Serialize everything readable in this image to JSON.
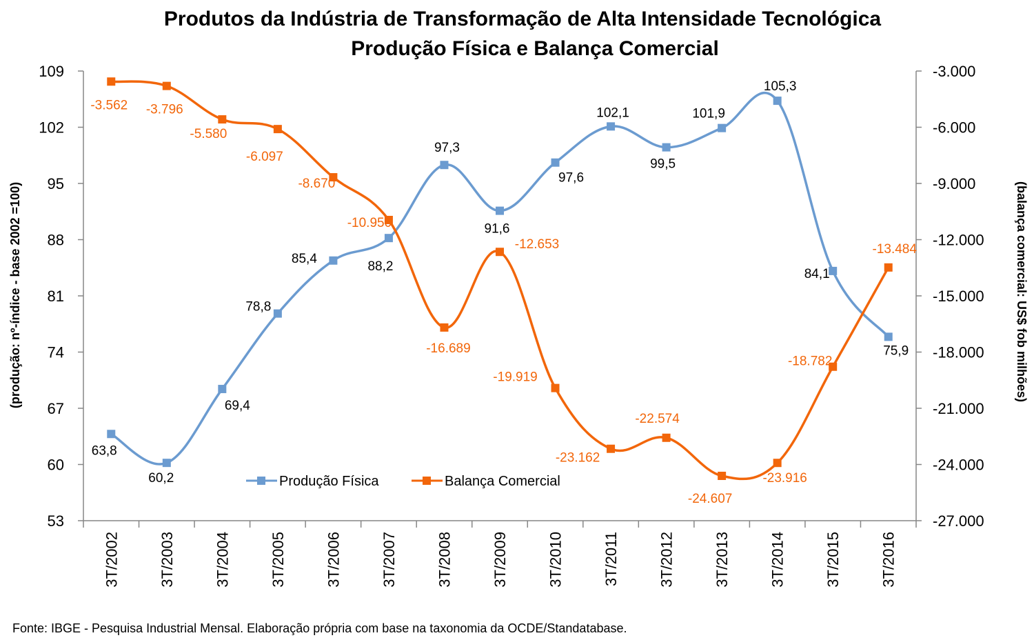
{
  "chart_data": {
    "type": "line",
    "title_line1": "Produtos da Indústria de Transformação de Alta Intensidade Tecnológica",
    "title_line2": "Produção Física e Balança Comercial",
    "ylabel_left": "(produção: nº-índice - base 2002 =100)",
    "ylabel_right": "(balança comercial: US$ fob milhões)",
    "categories": [
      "3T/2002",
      "3T/2003",
      "3T/2004",
      "3T/2005",
      "3T/2006",
      "3T/2007",
      "3T/2008",
      "3T/2009",
      "3T/2010",
      "3T/2011",
      "3T/2012",
      "3T/2013",
      "3T/2014",
      "3T/2015",
      "3T/2016"
    ],
    "left_axis": {
      "min": 53,
      "max": 109,
      "ticks": [
        53,
        60,
        67,
        74,
        81,
        88,
        95,
        102,
        109
      ],
      "tick_labels": [
        "53",
        "60",
        "67",
        "74",
        "81",
        "88",
        "95",
        "102",
        "109"
      ]
    },
    "right_axis": {
      "min": -27000,
      "max": -3000,
      "ticks": [
        -27000,
        -24000,
        -21000,
        -18000,
        -15000,
        -12000,
        -9000,
        -6000,
        -3000
      ],
      "tick_labels": [
        "-27.000",
        "-24.000",
        "-21.000",
        "-18.000",
        "-15.000",
        "-12.000",
        "-9.000",
        "-6.000",
        "-3.000"
      ]
    },
    "series": [
      {
        "name": "Produção Física",
        "axis": "left",
        "color": "#6b9bd0",
        "values": [
          63.8,
          60.2,
          69.4,
          78.8,
          85.4,
          88.2,
          97.3,
          91.6,
          97.6,
          102.1,
          99.5,
          101.9,
          105.3,
          84.1,
          75.9
        ],
        "labels": [
          "63,8",
          "60,2",
          "69,4",
          "78,8",
          "85,4",
          "88,2",
          "97,3",
          "91,6",
          "97,6",
          "102,1",
          "99,5",
          "101,9",
          "105,3",
          "84,1",
          "75,9"
        ]
      },
      {
        "name": "Balança Comercial",
        "axis": "right",
        "color": "#f2660a",
        "values": [
          -3562,
          -3796,
          -5580,
          -6097,
          -8670,
          -10950,
          -16689,
          -12653,
          -19919,
          -23162,
          -22574,
          -24607,
          -23916,
          -18782,
          -13484
        ],
        "labels": [
          "-3.562",
          "-3.796",
          "-5.580",
          "-6.097",
          "-8.670",
          "-10.950",
          "-16.689",
          "-12.653",
          "-19.919",
          "-23.162",
          "-22.574",
          "-24.607",
          "-23.916",
          "-18.782",
          "-13.484"
        ]
      }
    ],
    "legend_position": "bottom-center inside plot",
    "grid": false,
    "source": "Fonte:  IBGE - Pesquisa Industrial Mensal. Elaboração própria com base na taxonomia da OCDE/Standatabase."
  }
}
